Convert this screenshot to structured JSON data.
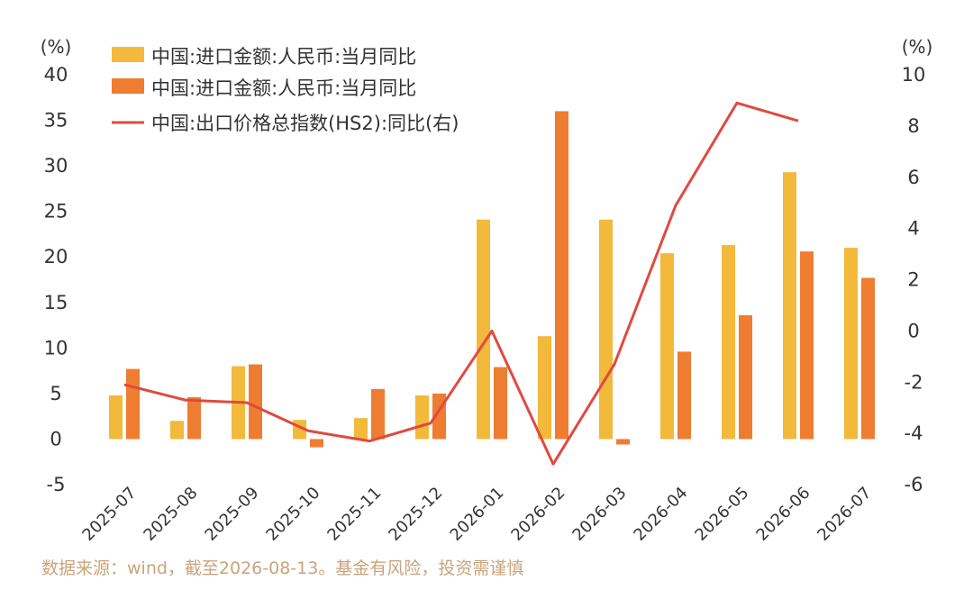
{
  "chart_data": {
    "type": "bar",
    "categories": [
      "2025-07",
      "2025-08",
      "2025-09",
      "2025-10",
      "2025-11",
      "2025-12",
      "2026-01",
      "2026-02",
      "2026-03",
      "2026-04",
      "2026-05",
      "2026-06",
      "2026-07"
    ],
    "series": [
      {
        "name": "中国:进口金额:人民币:当月同比",
        "type": "bar",
        "axis": "left",
        "color": "#f2b93b",
        "values": [
          4.8,
          2.0,
          8.0,
          2.1,
          2.3,
          4.8,
          24.1,
          11.3,
          24.1,
          20.4,
          21.3,
          29.3,
          21.0
        ]
      },
      {
        "name": "中国:进口金额:人民币:当月同比",
        "type": "bar",
        "axis": "left",
        "color": "#ee7d31",
        "values": [
          7.7,
          4.6,
          8.2,
          -0.9,
          5.5,
          5.0,
          7.9,
          36.0,
          -0.6,
          9.6,
          13.6,
          20.6,
          17.7
        ]
      },
      {
        "name": "中国:出口价格总指数(HS2):同比(右)",
        "type": "line",
        "axis": "right",
        "color": "#e04a3f",
        "values": [
          -2.1,
          -2.7,
          -2.8,
          -3.9,
          -4.3,
          -3.6,
          0.0,
          -5.2,
          -1.3,
          4.9,
          8.9,
          8.2,
          null
        ]
      }
    ],
    "left_axis": {
      "unit": "(%)",
      "ylim": [
        -5,
        40
      ],
      "ticks": [
        -5,
        0,
        5,
        10,
        15,
        20,
        25,
        30,
        35,
        40
      ]
    },
    "right_axis": {
      "unit": "(%)",
      "ylim": [
        -6,
        10
      ],
      "ticks": [
        -6,
        -4,
        -2,
        0,
        2,
        4,
        6,
        8,
        10
      ]
    },
    "grid": false,
    "legend_placement": "top-left"
  },
  "footer": {
    "source": "数据来源：wind，截至2026-08-13。基金有风险，投资需谨慎"
  }
}
